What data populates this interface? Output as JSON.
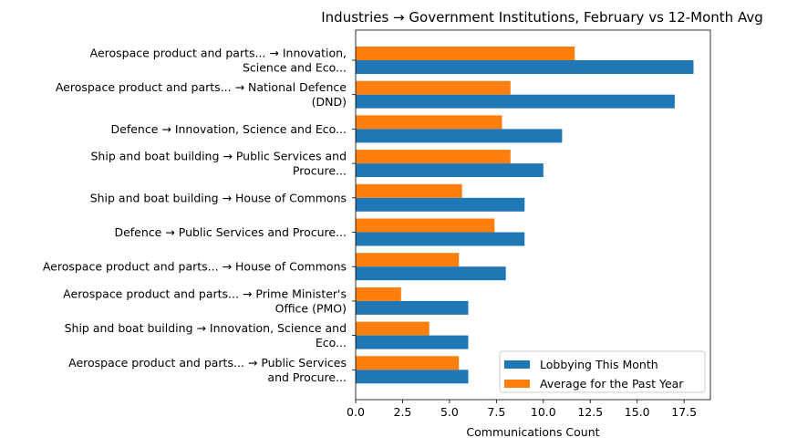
{
  "chart_data": {
    "type": "bar",
    "orientation": "horizontal",
    "title": "Industries → Government Institutions, February vs 12-Month Avg",
    "xlabel": "Communications Count",
    "ylabel": "",
    "xlim": [
      0,
      18.9
    ],
    "xticks": [
      "0.0",
      "2.5",
      "5.0",
      "7.5",
      "10.0",
      "12.5",
      "15.0",
      "17.5"
    ],
    "xtick_values": [
      0,
      2.5,
      5,
      7.5,
      10,
      12.5,
      15,
      17.5
    ],
    "categories": [
      [
        "Aerospace product and parts... → Innovation,",
        "Science and Eco..."
      ],
      [
        "Aerospace product and parts... → National Defence",
        "(DND)"
      ],
      [
        "Defence → Innovation, Science and Eco..."
      ],
      [
        "Ship and boat building → Public Services and",
        "Procure..."
      ],
      [
        "Ship and boat building → House of Commons"
      ],
      [
        "Defence → Public Services and Procure..."
      ],
      [
        "Aerospace product and parts... → House of Commons"
      ],
      [
        "Aerospace product and parts... → Prime Minister's",
        "Office (PMO)"
      ],
      [
        "Ship and boat building → Innovation, Science and",
        "Eco..."
      ],
      [
        "Aerospace product and parts... → Public Services",
        "and Procure..."
      ]
    ],
    "series": [
      {
        "name": "Lobbying This Month",
        "color": "#1f77b4",
        "values": [
          18,
          17,
          11,
          10,
          9,
          9,
          8,
          6,
          6,
          6
        ]
      },
      {
        "name": "Average for the Past Year",
        "color": "#ff7f0e",
        "values": [
          11.67,
          8.25,
          7.8,
          8.25,
          5.67,
          7.4,
          5.5,
          2.42,
          3.92,
          5.5
        ]
      }
    ],
    "legend": "lower-right",
    "grid": false
  }
}
